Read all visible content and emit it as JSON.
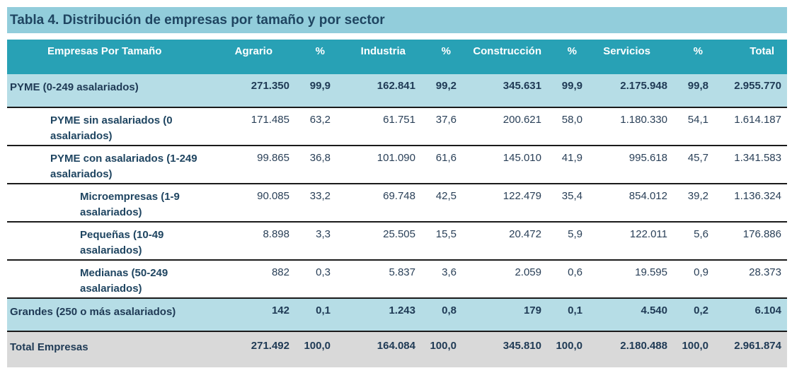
{
  "title": "Tabla 4.  Distribución de empresas por tamaño y por sector",
  "columns": [
    "Empresas Por Tamaño",
    "Agrario",
    "%",
    "Industria",
    "%",
    "Construcción",
    "%",
    "Servicios",
    "%",
    "Total"
  ],
  "rows": [
    {
      "label": "PYME (0-249 asalariados)",
      "values": [
        "271.350",
        "99,9",
        "162.841",
        "99,2",
        "345.631",
        "99,9",
        "2.175.948",
        "99,8",
        "2.955.770"
      ]
    },
    {
      "label": "PYME sin asalariados (0 asalariados)",
      "values": [
        "171.485",
        "63,2",
        "61.751",
        "37,6",
        "200.621",
        "58,0",
        "1.180.330",
        "54,1",
        "1.614.187"
      ]
    },
    {
      "label": "PYME con asalariados (1-249 asalariados)",
      "values": [
        "99.865",
        "36,8",
        "101.090",
        "61,6",
        "145.010",
        "41,9",
        "995.618",
        "45,7",
        "1.341.583"
      ]
    },
    {
      "label": "Microempresas (1-9 asalariados)",
      "values": [
        "90.085",
        "33,2",
        "69.748",
        "42,5",
        "122.479",
        "35,4",
        "854.012",
        "39,2",
        "1.136.324"
      ]
    },
    {
      "label": "Pequeñas (10-49 asalariados)",
      "values": [
        "8.898",
        "3,3",
        "25.505",
        "15,5",
        "20.472",
        "5,9",
        "122.011",
        "5,6",
        "176.886"
      ]
    },
    {
      "label": "Medianas (50-249 asalariados)",
      "values": [
        "882",
        "0,3",
        "5.837",
        "3,6",
        "2.059",
        "0,6",
        "19.595",
        "0,9",
        "28.373"
      ]
    },
    {
      "label": "Grandes (250 o más asalariados)",
      "values": [
        "142",
        "0,1",
        "1.243",
        "0,8",
        "179",
        "0,1",
        "4.540",
        "0,2",
        "6.104"
      ]
    },
    {
      "label": "Total Empresas",
      "values": [
        "271.492",
        "100,0",
        "164.084",
        "100,0",
        "345.810",
        "100,0",
        "2.180.488",
        "100,0",
        "2.961.874"
      ]
    }
  ],
  "colors": {
    "title_bg": "#92cddb",
    "header_bg": "#28a1b5",
    "highlight_row_bg": "#b6dde6",
    "total_row_bg": "#d9d9d9"
  }
}
